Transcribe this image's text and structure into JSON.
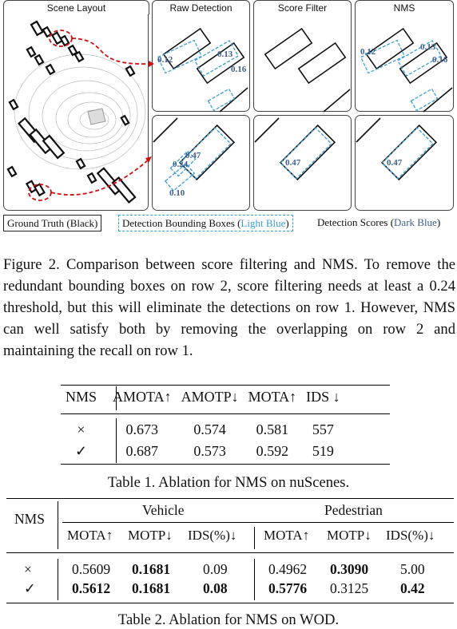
{
  "figure": {
    "panels": {
      "scene_layout": "Scene Layout",
      "raw_detection": "Raw Detection",
      "score_filter": "Score Filter",
      "nms": "NMS"
    },
    "row1_scores": {
      "raw": [
        "0.12",
        "0.13",
        "0.16"
      ],
      "nms": [
        "0.12",
        "0.13",
        "0.16"
      ]
    },
    "row2_scores": {
      "raw": [
        "0.47",
        "0.24",
        "0.10"
      ],
      "filter": [
        "0.47"
      ],
      "nms": [
        "0.47"
      ]
    },
    "legend": {
      "gt": "Ground Truth (Black)",
      "det_prefix": "Detection Bounding Boxes (",
      "det_color": "Light Blue",
      "det_suffix": ")",
      "score_prefix": "Detection Scores (",
      "score_color": "Dark Blue",
      "score_suffix": ")"
    },
    "colors": {
      "ground_truth": "#111111",
      "det_box": "#3aa0d8",
      "score_text": "#3d5f8f",
      "arrow": "#cc1111"
    }
  },
  "caption_fig": "Figure 2. Comparison between score filtering and NMS. To remove the redundant bounding boxes on row 2, score filtering needs at least a 0.24 threshold, but this will eliminate the detections on row 1. However, NMS can well satisfy both by removing the overlapping on row 2 and maintaining the recall on row 1.",
  "table1": {
    "headers": [
      "NMS",
      "AMOTA↑",
      "AMOTP↓",
      "MOTA↑",
      "IDS ↓"
    ],
    "rows": [
      [
        "×",
        "0.673",
        "0.574",
        "0.581",
        "557"
      ],
      [
        "✓",
        "0.687",
        "0.573",
        "0.592",
        "519"
      ]
    ],
    "caption": "Table 1. Ablation for NMS on nuScenes."
  },
  "table2": {
    "nms_header": "NMS",
    "groups": [
      "Vehicle",
      "Pedestrian"
    ],
    "subheaders": [
      "MOTA↑",
      "MOTP↓",
      "IDS(%)↓",
      "MOTA↑",
      "MOTP↓",
      "IDS(%)↓"
    ],
    "rows": [
      [
        "×",
        "0.5609",
        "0.1681",
        "0.09",
        "0.4962",
        "0.3090",
        "5.00"
      ],
      [
        "✓",
        "0.5612",
        "0.1681",
        "0.08",
        "0.5776",
        "0.3125",
        "0.42"
      ]
    ],
    "caption": "Table 2. Ablation for NMS on WOD."
  }
}
